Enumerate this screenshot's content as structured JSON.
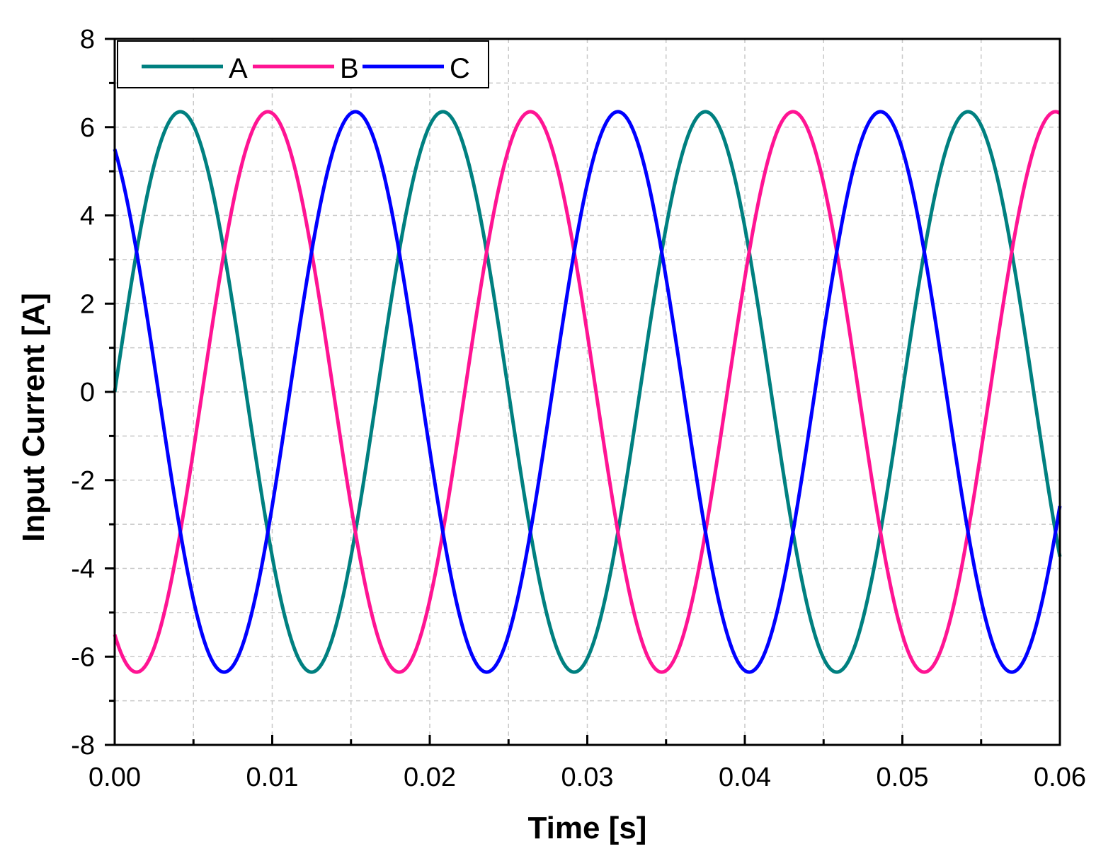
{
  "chart_data": {
    "type": "line",
    "xlabel": "Time [s]",
    "ylabel": "Input Current [A]",
    "xlim": [
      0,
      0.06
    ],
    "ylim": [
      -8,
      8
    ],
    "x_ticks": [
      "0.00",
      "0.01",
      "0.02",
      "0.03",
      "0.04",
      "0.05",
      "0.06"
    ],
    "y_ticks": [
      "-8",
      "-6",
      "-4",
      "-2",
      "0",
      "2",
      "4",
      "6",
      "8"
    ],
    "grid": true,
    "legend_position": "top-left",
    "waveform": {
      "kind": "sine",
      "amplitude": 6.35,
      "frequency_hz": 60,
      "phase_shift_deg": 120
    },
    "series": [
      {
        "name": "A",
        "color": "#008080",
        "phase_deg": 0
      },
      {
        "name": "B",
        "color": "#FF1493",
        "phase_deg": -120
      },
      {
        "name": "C",
        "color": "#0000FF",
        "phase_deg": 120
      }
    ]
  }
}
